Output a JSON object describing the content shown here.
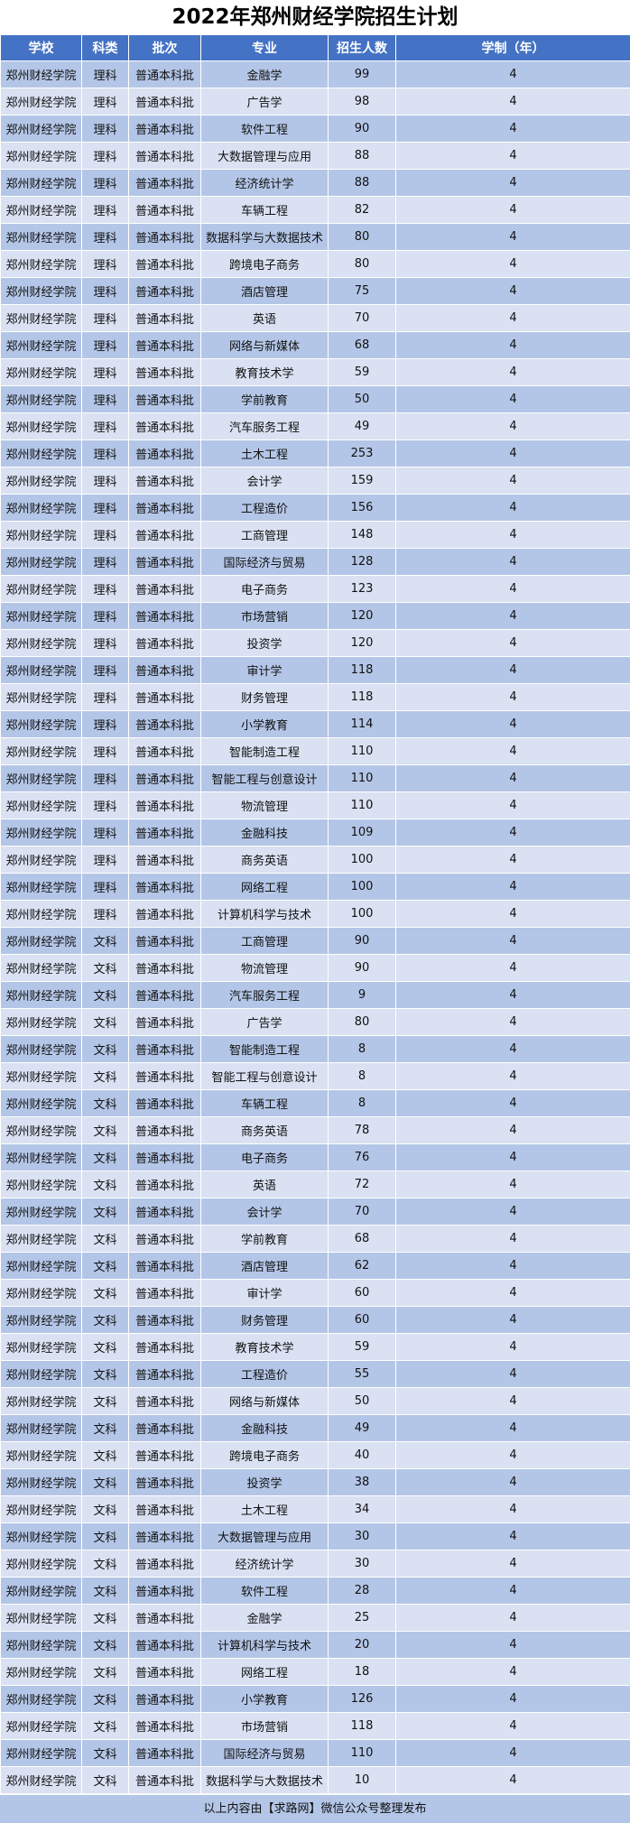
{
  "title": "2022年郑州财经学院招生计划",
  "columns": [
    "学校",
    "科类",
    "批次",
    "专业",
    "招生人数",
    "学制（年）"
  ],
  "colors": {
    "header": "#4472c4",
    "row_odd": "#b4c6e7",
    "row_even": "#d9e1f2"
  },
  "rows": [
    [
      "郑州财经学院",
      "理科",
      "普通本科批",
      "金融学",
      "99",
      "4"
    ],
    [
      "郑州财经学院",
      "理科",
      "普通本科批",
      "广告学",
      "98",
      "4"
    ],
    [
      "郑州财经学院",
      "理科",
      "普通本科批",
      "软件工程",
      "90",
      "4"
    ],
    [
      "郑州财经学院",
      "理科",
      "普通本科批",
      "大数据管理与应用",
      "88",
      "4"
    ],
    [
      "郑州财经学院",
      "理科",
      "普通本科批",
      "经济统计学",
      "88",
      "4"
    ],
    [
      "郑州财经学院",
      "理科",
      "普通本科批",
      "车辆工程",
      "82",
      "4"
    ],
    [
      "郑州财经学院",
      "理科",
      "普通本科批",
      "数据科学与大数据技术",
      "80",
      "4"
    ],
    [
      "郑州财经学院",
      "理科",
      "普通本科批",
      "跨境电子商务",
      "80",
      "4"
    ],
    [
      "郑州财经学院",
      "理科",
      "普通本科批",
      "酒店管理",
      "75",
      "4"
    ],
    [
      "郑州财经学院",
      "理科",
      "普通本科批",
      "英语",
      "70",
      "4"
    ],
    [
      "郑州财经学院",
      "理科",
      "普通本科批",
      "网络与新媒体",
      "68",
      "4"
    ],
    [
      "郑州财经学院",
      "理科",
      "普通本科批",
      "教育技术学",
      "59",
      "4"
    ],
    [
      "郑州财经学院",
      "理科",
      "普通本科批",
      "学前教育",
      "50",
      "4"
    ],
    [
      "郑州财经学院",
      "理科",
      "普通本科批",
      "汽车服务工程",
      "49",
      "4"
    ],
    [
      "郑州财经学院",
      "理科",
      "普通本科批",
      "土木工程",
      "253",
      "4"
    ],
    [
      "郑州财经学院",
      "理科",
      "普通本科批",
      "会计学",
      "159",
      "4"
    ],
    [
      "郑州财经学院",
      "理科",
      "普通本科批",
      "工程造价",
      "156",
      "4"
    ],
    [
      "郑州财经学院",
      "理科",
      "普通本科批",
      "工商管理",
      "148",
      "4"
    ],
    [
      "郑州财经学院",
      "理科",
      "普通本科批",
      "国际经济与贸易",
      "128",
      "4"
    ],
    [
      "郑州财经学院",
      "理科",
      "普通本科批",
      "电子商务",
      "123",
      "4"
    ],
    [
      "郑州财经学院",
      "理科",
      "普通本科批",
      "市场营销",
      "120",
      "4"
    ],
    [
      "郑州财经学院",
      "理科",
      "普通本科批",
      "投资学",
      "120",
      "4"
    ],
    [
      "郑州财经学院",
      "理科",
      "普通本科批",
      "审计学",
      "118",
      "4"
    ],
    [
      "郑州财经学院",
      "理科",
      "普通本科批",
      "财务管理",
      "118",
      "4"
    ],
    [
      "郑州财经学院",
      "理科",
      "普通本科批",
      "小学教育",
      "114",
      "4"
    ],
    [
      "郑州财经学院",
      "理科",
      "普通本科批",
      "智能制造工程",
      "110",
      "4"
    ],
    [
      "郑州财经学院",
      "理科",
      "普通本科批",
      "智能工程与创意设计",
      "110",
      "4"
    ],
    [
      "郑州财经学院",
      "理科",
      "普通本科批",
      "物流管理",
      "110",
      "4"
    ],
    [
      "郑州财经学院",
      "理科",
      "普通本科批",
      "金融科技",
      "109",
      "4"
    ],
    [
      "郑州财经学院",
      "理科",
      "普通本科批",
      "商务英语",
      "100",
      "4"
    ],
    [
      "郑州财经学院",
      "理科",
      "普通本科批",
      "网络工程",
      "100",
      "4"
    ],
    [
      "郑州财经学院",
      "理科",
      "普通本科批",
      "计算机科学与技术",
      "100",
      "4"
    ],
    [
      "郑州财经学院",
      "文科",
      "普通本科批",
      "工商管理",
      "90",
      "4"
    ],
    [
      "郑州财经学院",
      "文科",
      "普通本科批",
      "物流管理",
      "90",
      "4"
    ],
    [
      "郑州财经学院",
      "文科",
      "普通本科批",
      "汽车服务工程",
      "9",
      "4"
    ],
    [
      "郑州财经学院",
      "文科",
      "普通本科批",
      "广告学",
      "80",
      "4"
    ],
    [
      "郑州财经学院",
      "文科",
      "普通本科批",
      "智能制造工程",
      "8",
      "4"
    ],
    [
      "郑州财经学院",
      "文科",
      "普通本科批",
      "智能工程与创意设计",
      "8",
      "4"
    ],
    [
      "郑州财经学院",
      "文科",
      "普通本科批",
      "车辆工程",
      "8",
      "4"
    ],
    [
      "郑州财经学院",
      "文科",
      "普通本科批",
      "商务英语",
      "78",
      "4"
    ],
    [
      "郑州财经学院",
      "文科",
      "普通本科批",
      "电子商务",
      "76",
      "4"
    ],
    [
      "郑州财经学院",
      "文科",
      "普通本科批",
      "英语",
      "72",
      "4"
    ],
    [
      "郑州财经学院",
      "文科",
      "普通本科批",
      "会计学",
      "70",
      "4"
    ],
    [
      "郑州财经学院",
      "文科",
      "普通本科批",
      "学前教育",
      "68",
      "4"
    ],
    [
      "郑州财经学院",
      "文科",
      "普通本科批",
      "酒店管理",
      "62",
      "4"
    ],
    [
      "郑州财经学院",
      "文科",
      "普通本科批",
      "审计学",
      "60",
      "4"
    ],
    [
      "郑州财经学院",
      "文科",
      "普通本科批",
      "财务管理",
      "60",
      "4"
    ],
    [
      "郑州财经学院",
      "文科",
      "普通本科批",
      "教育技术学",
      "59",
      "4"
    ],
    [
      "郑州财经学院",
      "文科",
      "普通本科批",
      "工程造价",
      "55",
      "4"
    ],
    [
      "郑州财经学院",
      "文科",
      "普通本科批",
      "网络与新媒体",
      "50",
      "4"
    ],
    [
      "郑州财经学院",
      "文科",
      "普通本科批",
      "金融科技",
      "49",
      "4"
    ],
    [
      "郑州财经学院",
      "文科",
      "普通本科批",
      "跨境电子商务",
      "40",
      "4"
    ],
    [
      "郑州财经学院",
      "文科",
      "普通本科批",
      "投资学",
      "38",
      "4"
    ],
    [
      "郑州财经学院",
      "文科",
      "普通本科批",
      "土木工程",
      "34",
      "4"
    ],
    [
      "郑州财经学院",
      "文科",
      "普通本科批",
      "大数据管理与应用",
      "30",
      "4"
    ],
    [
      "郑州财经学院",
      "文科",
      "普通本科批",
      "经济统计学",
      "30",
      "4"
    ],
    [
      "郑州财经学院",
      "文科",
      "普通本科批",
      "软件工程",
      "28",
      "4"
    ],
    [
      "郑州财经学院",
      "文科",
      "普通本科批",
      "金融学",
      "25",
      "4"
    ],
    [
      "郑州财经学院",
      "文科",
      "普通本科批",
      "计算机科学与技术",
      "20",
      "4"
    ],
    [
      "郑州财经学院",
      "文科",
      "普通本科批",
      "网络工程",
      "18",
      "4"
    ],
    [
      "郑州财经学院",
      "文科",
      "普通本科批",
      "小学教育",
      "126",
      "4"
    ],
    [
      "郑州财经学院",
      "文科",
      "普通本科批",
      "市场营销",
      "118",
      "4"
    ],
    [
      "郑州财经学院",
      "文科",
      "普通本科批",
      "国际经济与贸易",
      "110",
      "4"
    ],
    [
      "郑州财经学院",
      "文科",
      "普通本科批",
      "数据科学与大数据技术",
      "10",
      "4"
    ]
  ],
  "footer": "以上内容由【求路网】微信公众号整理发布"
}
